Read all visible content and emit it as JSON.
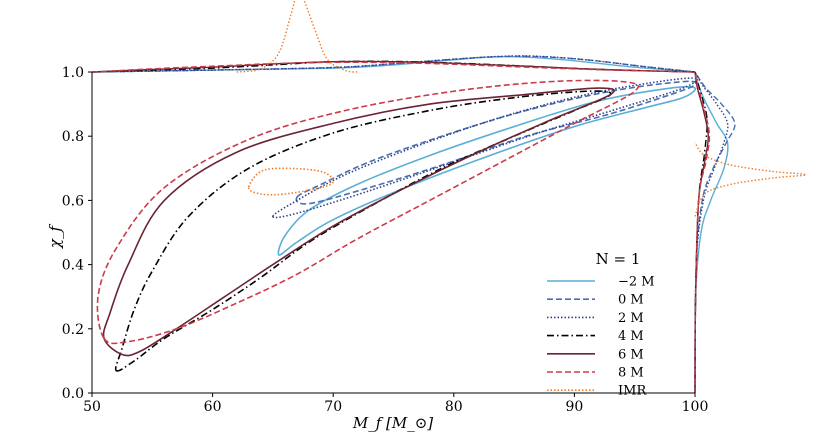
{
  "chart_data": {
    "type": "contour",
    "title": "",
    "xlabel": "M_f [M_⊙]",
    "ylabel": "χ_f",
    "xlim": [
      50,
      100
    ],
    "ylim": [
      0.0,
      1.0
    ],
    "xticks": [
      50,
      60,
      70,
      80,
      90,
      100
    ],
    "yticks": [
      0.0,
      0.2,
      0.4,
      0.6,
      0.8,
      1.0
    ],
    "xtick_labels": [
      "50",
      "60",
      "70",
      "80",
      "90",
      "100"
    ],
    "ytick_labels": [
      "0.0",
      "0.2",
      "0.4",
      "0.6",
      "0.8",
      "1.0"
    ],
    "legend": {
      "title": "N = 1",
      "position": "lower-right",
      "entries": [
        "−2 M",
        "0 M",
        "2 M",
        "4 M",
        "6 M",
        "8 M",
        "IMR"
      ]
    },
    "series": [
      {
        "name": "−2 M",
        "color": "#5aafd6",
        "style": "solid",
        "contour": [
          [
            65.5,
            0.43
          ],
          [
            66,
            0.49
          ],
          [
            68,
            0.57
          ],
          [
            72,
            0.65
          ],
          [
            78,
            0.74
          ],
          [
            85,
            0.83
          ],
          [
            92,
            0.91
          ],
          [
            98,
            0.95
          ],
          [
            100,
            0.95
          ],
          [
            99,
            0.92
          ],
          [
            96,
            0.89
          ],
          [
            90,
            0.83
          ],
          [
            83,
            0.74
          ],
          [
            76,
            0.64
          ],
          [
            70,
            0.54
          ],
          [
            67,
            0.47
          ],
          [
            65.5,
            0.43
          ]
        ],
        "x_marginal": [
          [
            50,
            1.0
          ],
          [
            60,
            1.006
          ],
          [
            70,
            1.012
          ],
          [
            75,
            1.022
          ],
          [
            80,
            1.038
          ],
          [
            83,
            1.047
          ],
          [
            86,
            1.046
          ],
          [
            90,
            1.035
          ],
          [
            95,
            1.015
          ],
          [
            100,
            1.0
          ]
        ],
        "y_marginal": [
          [
            0.0,
            100
          ],
          [
            0.3,
            100.05
          ],
          [
            0.5,
            100.5
          ],
          [
            0.6,
            101.3
          ],
          [
            0.7,
            102.4
          ],
          [
            0.78,
            102.7
          ],
          [
            0.84,
            101.8
          ],
          [
            0.92,
            100.7
          ],
          [
            0.97,
            100.2
          ],
          [
            1.0,
            100
          ]
        ]
      },
      {
        "name": "0 M",
        "color": "#4a6fb0",
        "style": "dashed",
        "contour": [
          [
            67,
            0.61
          ],
          [
            69,
            0.65
          ],
          [
            73,
            0.72
          ],
          [
            79,
            0.8
          ],
          [
            86,
            0.88
          ],
          [
            93,
            0.94
          ],
          [
            99,
            0.97
          ],
          [
            100,
            0.96
          ],
          [
            98,
            0.93
          ],
          [
            93,
            0.87
          ],
          [
            86,
            0.8
          ],
          [
            79,
            0.71
          ],
          [
            73,
            0.64
          ],
          [
            68,
            0.59
          ],
          [
            67,
            0.61
          ]
        ],
        "x_marginal": [
          [
            50,
            1.0
          ],
          [
            60,
            1.006
          ],
          [
            70,
            1.014
          ],
          [
            75,
            1.025
          ],
          [
            80,
            1.04
          ],
          [
            84,
            1.048
          ],
          [
            87,
            1.048
          ],
          [
            91,
            1.038
          ],
          [
            96,
            1.016
          ],
          [
            100,
            1.0
          ]
        ],
        "y_marginal": [
          [
            0.0,
            100
          ],
          [
            0.4,
            100.1
          ],
          [
            0.6,
            100.6
          ],
          [
            0.7,
            101.5
          ],
          [
            0.78,
            102.6
          ],
          [
            0.84,
            103.3
          ],
          [
            0.9,
            102.2
          ],
          [
            0.95,
            100.9
          ],
          [
            1.0,
            100
          ]
        ]
      },
      {
        "name": "2 M",
        "color": "#2e3f8c",
        "style": "dotted",
        "contour": [
          [
            65,
            0.55
          ],
          [
            67,
            0.6
          ],
          [
            71,
            0.68
          ],
          [
            77,
            0.77
          ],
          [
            84,
            0.86
          ],
          [
            91,
            0.93
          ],
          [
            97,
            0.97
          ],
          [
            100,
            0.98
          ],
          [
            99,
            0.95
          ],
          [
            94,
            0.89
          ],
          [
            87,
            0.81
          ],
          [
            80,
            0.72
          ],
          [
            73,
            0.63
          ],
          [
            67,
            0.56
          ],
          [
            65,
            0.55
          ]
        ],
        "x_marginal": [
          [
            50,
            1.0
          ],
          [
            60,
            1.006
          ],
          [
            70,
            1.014
          ],
          [
            75,
            1.026
          ],
          [
            80,
            1.04
          ],
          [
            84,
            1.049
          ],
          [
            87,
            1.049
          ],
          [
            91,
            1.038
          ],
          [
            96,
            1.016
          ],
          [
            100,
            1.0
          ]
        ],
        "y_marginal": [
          [
            0.0,
            100
          ],
          [
            0.4,
            100.1
          ],
          [
            0.6,
            100.7
          ],
          [
            0.7,
            101.6
          ],
          [
            0.78,
            102.4
          ],
          [
            0.84,
            102.7
          ],
          [
            0.9,
            101.8
          ],
          [
            0.96,
            100.6
          ],
          [
            1.0,
            100
          ]
        ]
      },
      {
        "name": "4 M",
        "color": "#000000",
        "style": "dashdot",
        "contour": [
          [
            52,
            0.07
          ],
          [
            53.5,
            0.1
          ],
          [
            56,
            0.17
          ],
          [
            60,
            0.26
          ],
          [
            64,
            0.36
          ],
          [
            68,
            0.47
          ],
          [
            73,
            0.58
          ],
          [
            79,
            0.7
          ],
          [
            85,
            0.8
          ],
          [
            90,
            0.88
          ],
          [
            93,
            0.93
          ],
          [
            91,
            0.94
          ],
          [
            85,
            0.92
          ],
          [
            78,
            0.88
          ],
          [
            70,
            0.81
          ],
          [
            63,
            0.7
          ],
          [
            58,
            0.55
          ],
          [
            55,
            0.38
          ],
          [
            53.5,
            0.26
          ],
          [
            52.5,
            0.14
          ],
          [
            52,
            0.07
          ]
        ],
        "x_marginal": [
          [
            50,
            1.0
          ],
          [
            55,
            1.006
          ],
          [
            60,
            1.012
          ],
          [
            65,
            1.022
          ],
          [
            70,
            1.032
          ],
          [
            75,
            1.033
          ],
          [
            80,
            1.028
          ],
          [
            85,
            1.02
          ],
          [
            92,
            1.008
          ],
          [
            100,
            1.0
          ]
        ],
        "y_marginal": [
          [
            0.0,
            100
          ],
          [
            0.3,
            100.05
          ],
          [
            0.6,
            100.3
          ],
          [
            0.75,
            100.8
          ],
          [
            0.85,
            101.0
          ],
          [
            0.92,
            100.6
          ],
          [
            0.97,
            100.2
          ],
          [
            1.0,
            100
          ]
        ]
      },
      {
        "name": "6 M",
        "color": "#6b2433",
        "style": "solid",
        "contour": [
          [
            52.5,
            0.12
          ],
          [
            54,
            0.13
          ],
          [
            57,
            0.2
          ],
          [
            61,
            0.3
          ],
          [
            65,
            0.4
          ],
          [
            70,
            0.52
          ],
          [
            76,
            0.64
          ],
          [
            82,
            0.75
          ],
          [
            88,
            0.85
          ],
          [
            93,
            0.93
          ],
          [
            92,
            0.95
          ],
          [
            86,
            0.93
          ],
          [
            78,
            0.9
          ],
          [
            70,
            0.84
          ],
          [
            62,
            0.75
          ],
          [
            56,
            0.6
          ],
          [
            53,
            0.4
          ],
          [
            51.5,
            0.25
          ],
          [
            51,
            0.17
          ],
          [
            52.5,
            0.12
          ]
        ],
        "x_marginal": [
          [
            50,
            1.0
          ],
          [
            55,
            1.008
          ],
          [
            60,
            1.015
          ],
          [
            65,
            1.025
          ],
          [
            70,
            1.032
          ],
          [
            75,
            1.032
          ],
          [
            80,
            1.027
          ],
          [
            86,
            1.018
          ],
          [
            93,
            1.007
          ],
          [
            100,
            1.0
          ]
        ],
        "y_marginal": [
          [
            0.0,
            100
          ],
          [
            0.3,
            100.05
          ],
          [
            0.6,
            100.3
          ],
          [
            0.72,
            100.8
          ],
          [
            0.8,
            101.1
          ],
          [
            0.88,
            100.7
          ],
          [
            0.95,
            100.2
          ],
          [
            1.0,
            100
          ]
        ]
      },
      {
        "name": "8 M",
        "color": "#cc3b4a",
        "style": "dashed",
        "contour": [
          [
            51,
            0.17
          ],
          [
            53,
            0.16
          ],
          [
            57,
            0.2
          ],
          [
            62,
            0.28
          ],
          [
            67,
            0.37
          ],
          [
            72,
            0.48
          ],
          [
            78,
            0.6
          ],
          [
            84,
            0.72
          ],
          [
            90,
            0.84
          ],
          [
            95,
            0.94
          ],
          [
            94,
            0.97
          ],
          [
            88,
            0.97
          ],
          [
            80,
            0.94
          ],
          [
            71,
            0.88
          ],
          [
            63,
            0.79
          ],
          [
            56,
            0.64
          ],
          [
            52,
            0.45
          ],
          [
            50.5,
            0.3
          ],
          [
            51,
            0.17
          ]
        ],
        "x_marginal": [
          [
            50,
            1.0
          ],
          [
            55,
            1.01
          ],
          [
            60,
            1.018
          ],
          [
            65,
            1.026
          ],
          [
            70,
            1.03
          ],
          [
            75,
            1.029
          ],
          [
            80,
            1.024
          ],
          [
            86,
            1.015
          ],
          [
            93,
            1.006
          ],
          [
            100,
            1.0
          ]
        ],
        "y_marginal": [
          [
            0.0,
            100
          ],
          [
            0.3,
            100.05
          ],
          [
            0.6,
            100.3
          ],
          [
            0.72,
            100.9
          ],
          [
            0.8,
            101.2
          ],
          [
            0.88,
            100.8
          ],
          [
            0.96,
            100.2
          ],
          [
            1.0,
            100
          ]
        ]
      },
      {
        "name": "IMR",
        "color": "#f07c2a",
        "style": "dotted",
        "contour": [
          [
            63,
            0.64
          ],
          [
            64,
            0.62
          ],
          [
            66,
            0.62
          ],
          [
            69,
            0.64
          ],
          [
            70,
            0.66
          ],
          [
            69,
            0.69
          ],
          [
            66,
            0.7
          ],
          [
            64,
            0.69
          ],
          [
            63,
            0.64
          ]
        ],
        "x_marginal": [
          [
            62,
            1.0
          ],
          [
            64,
            1.01
          ],
          [
            65.5,
            1.06
          ],
          [
            66.5,
            1.18
          ],
          [
            67,
            1.24
          ],
          [
            67.5,
            1.23
          ],
          [
            68.5,
            1.13
          ],
          [
            69.5,
            1.04
          ],
          [
            71,
            1.005
          ],
          [
            72,
            1.0
          ]
        ],
        "y_marginal": [
          [
            0.55,
            100
          ],
          [
            0.62,
            100.8
          ],
          [
            0.65,
            103.0
          ],
          [
            0.67,
            106.5
          ],
          [
            0.68,
            109.2
          ],
          [
            0.69,
            106.5
          ],
          [
            0.71,
            103.0
          ],
          [
            0.74,
            100.8
          ],
          [
            0.78,
            100
          ]
        ]
      }
    ]
  }
}
